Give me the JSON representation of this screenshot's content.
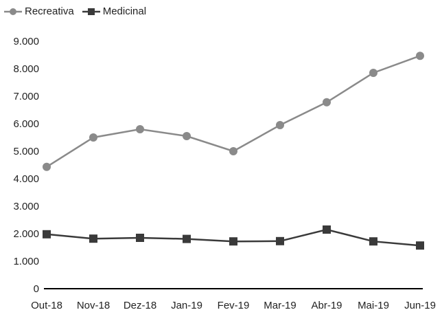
{
  "chart_data": {
    "type": "line",
    "categories": [
      "Out-18",
      "Nov-18",
      "Dez-18",
      "Jan-19",
      "Fev-19",
      "Mar-19",
      "Abr-19",
      "Mai-19",
      "Jun-19"
    ],
    "series": [
      {
        "name": "Recreativa",
        "marker": "circle",
        "values": [
          4430,
          5500,
          5800,
          5550,
          5000,
          5950,
          6780,
          7850,
          8470
        ],
        "color": "#8a8a8a"
      },
      {
        "name": "Medicinal",
        "marker": "square",
        "values": [
          1980,
          1820,
          1850,
          1810,
          1720,
          1730,
          2150,
          1720,
          1570
        ],
        "color": "#3a3a3a"
      }
    ],
    "y_ticks": [
      "0",
      "1.000",
      "2.000",
      "3.000",
      "4.000",
      "5.000",
      "6.000",
      "7.000",
      "8.000",
      "9.000"
    ],
    "ylim": [
      0,
      9000
    ],
    "grid": false,
    "legend_position": "top-left"
  }
}
